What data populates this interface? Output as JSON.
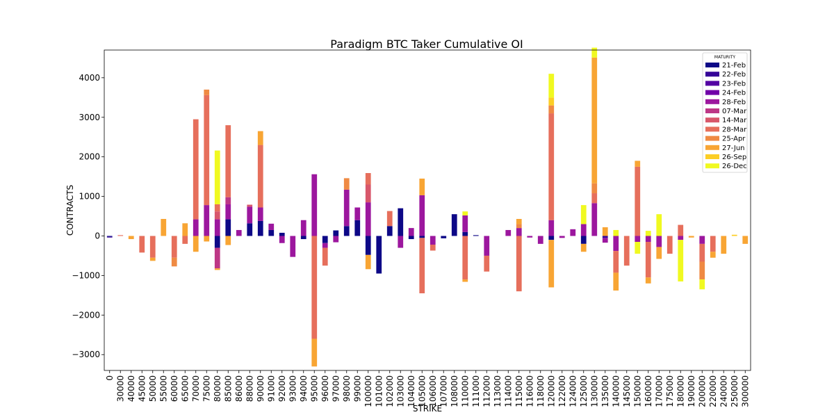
{
  "chart_data": {
    "type": "bar",
    "stacked": true,
    "title": "Paradigm BTC Taker Cumulative OI",
    "xlabel": "STRIKE",
    "ylabel": "CONTRACTS",
    "ylim": [
      -3400,
      4700
    ],
    "yticks": [
      -3000,
      -2000,
      -1000,
      0,
      1000,
      2000,
      3000,
      4000
    ],
    "legend_title": "MATURITY",
    "legend_position": "top-right",
    "categories": [
      "0",
      "30000",
      "40000",
      "45000",
      "50000",
      "55000",
      "60000",
      "65000",
      "70000",
      "75000",
      "80000",
      "85000",
      "86000",
      "88000",
      "90000",
      "91000",
      "92000",
      "93000",
      "94000",
      "95000",
      "96000",
      "97000",
      "98000",
      "99000",
      "100000",
      "101000",
      "102000",
      "103000",
      "104000",
      "105000",
      "106000",
      "107000",
      "108000",
      "110000",
      "111000",
      "112000",
      "113000",
      "114000",
      "115000",
      "116000",
      "118000",
      "120000",
      "122000",
      "124000",
      "125000",
      "130000",
      "135000",
      "140000",
      "145000",
      "150000",
      "160000",
      "170000",
      "175000",
      "180000",
      "190000",
      "200000",
      "220000",
      "240000",
      "250000",
      "300000"
    ],
    "series": [
      {
        "name": "21-Feb",
        "color": "#0d0887",
        "values": [
          -20,
          0,
          0,
          0,
          0,
          0,
          0,
          0,
          0,
          0,
          -300,
          420,
          0,
          320,
          380,
          150,
          80,
          0,
          -80,
          0,
          -180,
          140,
          250,
          400,
          -480,
          -950,
          250,
          700,
          -80,
          -50,
          0,
          -60,
          550,
          100,
          20,
          0,
          0,
          0,
          0,
          0,
          0,
          -100,
          0,
          0,
          -200,
          0,
          0,
          0,
          0,
          0,
          0,
          0,
          0,
          0,
          0,
          0,
          0,
          0,
          0,
          0
        ]
      },
      {
        "name": "22-Feb",
        "color": "#350498",
        "values": [
          -20,
          0,
          0,
          0,
          0,
          0,
          0,
          0,
          0,
          0,
          0,
          0,
          0,
          0,
          0,
          0,
          0,
          0,
          0,
          0,
          0,
          0,
          0,
          0,
          0,
          0,
          0,
          0,
          0,
          0,
          0,
          0,
          0,
          0,
          0,
          0,
          0,
          0,
          0,
          0,
          0,
          0,
          0,
          0,
          0,
          0,
          -50,
          0,
          0,
          0,
          0,
          0,
          0,
          0,
          0,
          0,
          0,
          0,
          0,
          0
        ]
      },
      {
        "name": "23-Feb",
        "color": "#5402a3",
        "values": [
          0,
          0,
          0,
          0,
          0,
          0,
          0,
          0,
          0,
          0,
          0,
          0,
          0,
          0,
          0,
          0,
          0,
          0,
          0,
          0,
          0,
          0,
          0,
          0,
          0,
          0,
          0,
          0,
          0,
          0,
          0,
          0,
          0,
          0,
          0,
          0,
          0,
          0,
          0,
          0,
          0,
          0,
          0,
          0,
          0,
          0,
          0,
          0,
          0,
          0,
          0,
          0,
          0,
          0,
          0,
          0,
          0,
          0,
          0,
          0
        ]
      },
      {
        "name": "24-Feb",
        "color": "#7000a8",
        "values": [
          0,
          0,
          0,
          0,
          0,
          0,
          0,
          0,
          0,
          0,
          0,
          0,
          0,
          0,
          0,
          0,
          0,
          0,
          0,
          0,
          0,
          0,
          0,
          0,
          0,
          0,
          0,
          0,
          0,
          0,
          0,
          0,
          0,
          0,
          0,
          0,
          0,
          0,
          0,
          0,
          0,
          0,
          0,
          0,
          0,
          0,
          0,
          0,
          0,
          0,
          0,
          0,
          0,
          0,
          0,
          0,
          0,
          0,
          0,
          0
        ]
      },
      {
        "name": "28-Feb",
        "color": "#9c179e",
        "values": [
          0,
          0,
          0,
          0,
          0,
          0,
          0,
          0,
          420,
          780,
          420,
          380,
          150,
          420,
          340,
          160,
          -180,
          -530,
          400,
          1560,
          -120,
          -160,
          920,
          320,
          850,
          0,
          0,
          -300,
          200,
          1030,
          -220,
          0,
          0,
          420,
          0,
          -500,
          0,
          150,
          200,
          -40,
          -200,
          400,
          -50,
          170,
          300,
          830,
          -120,
          -380,
          0,
          -150,
          -150,
          -280,
          0,
          -100,
          0,
          -200,
          0,
          0,
          0,
          0
        ]
      },
      {
        "name": "07-Mar",
        "color": "#bd3786",
        "values": [
          0,
          0,
          0,
          0,
          0,
          0,
          0,
          0,
          0,
          0,
          -520,
          180,
          0,
          0,
          0,
          0,
          0,
          0,
          0,
          0,
          0,
          0,
          0,
          0,
          0,
          0,
          0,
          0,
          0,
          0,
          0,
          0,
          0,
          0,
          0,
          0,
          0,
          0,
          0,
          0,
          0,
          0,
          0,
          0,
          0,
          0,
          0,
          0,
          0,
          0,
          0,
          0,
          0,
          0,
          0,
          0,
          0,
          0,
          0,
          0
        ]
      },
      {
        "name": "14-Mar",
        "color": "#d8576b",
        "values": [
          0,
          0,
          0,
          0,
          0,
          0,
          0,
          0,
          0,
          0,
          200,
          0,
          0,
          50,
          0,
          0,
          0,
          0,
          0,
          0,
          0,
          0,
          0,
          0,
          450,
          0,
          0,
          0,
          0,
          0,
          0,
          0,
          0,
          0,
          0,
          0,
          0,
          0,
          0,
          0,
          0,
          0,
          0,
          0,
          0,
          0,
          0,
          0,
          0,
          0,
          0,
          0,
          0,
          0,
          0,
          0,
          0,
          0,
          0,
          0
        ]
      },
      {
        "name": "28-Mar",
        "color": "#e66f5c",
        "values": [
          0,
          20,
          0,
          -420,
          -550,
          0,
          -550,
          -200,
          2530,
          2780,
          180,
          1820,
          0,
          0,
          1580,
          0,
          0,
          0,
          0,
          -2600,
          -450,
          0,
          0,
          0,
          290,
          0,
          380,
          0,
          0,
          -1400,
          -150,
          0,
          0,
          -1100,
          0,
          -400,
          0,
          0,
          -1400,
          0,
          0,
          2700,
          0,
          0,
          0,
          250,
          0,
          -550,
          -750,
          1750,
          -900,
          0,
          -450,
          280,
          0,
          -450,
          -400,
          0,
          0,
          0
        ]
      },
      {
        "name": "25-Apr",
        "color": "#ef8a43",
        "values": [
          0,
          0,
          0,
          0,
          0,
          0,
          -220,
          0,
          0,
          140,
          0,
          0,
          0,
          0,
          0,
          0,
          0,
          0,
          0,
          0,
          0,
          0,
          290,
          0,
          0,
          0,
          0,
          0,
          0,
          0,
          0,
          0,
          0,
          0,
          0,
          0,
          0,
          0,
          100,
          0,
          0,
          200,
          0,
          0,
          0,
          250,
          0,
          0,
          0,
          0,
          0,
          0,
          0,
          0,
          0,
          -450,
          0,
          0,
          0,
          0
        ]
      },
      {
        "name": "27-Jun",
        "color": "#f8a534",
        "values": [
          0,
          0,
          -80,
          0,
          -80,
          430,
          0,
          320,
          -400,
          -140,
          -40,
          -230,
          0,
          0,
          350,
          0,
          0,
          0,
          0,
          -700,
          0,
          0,
          0,
          0,
          -360,
          0,
          0,
          0,
          0,
          420,
          0,
          0,
          0,
          -60,
          0,
          0,
          0,
          0,
          130,
          0,
          0,
          -1200,
          0,
          0,
          -200,
          3180,
          220,
          -450,
          0,
          150,
          -150,
          -300,
          0,
          0,
          -40,
          0,
          -150,
          -450,
          0,
          -200
        ]
      },
      {
        "name": "26-Sep",
        "color": "#fcce25",
        "values": [
          0,
          0,
          0,
          0,
          0,
          0,
          0,
          0,
          0,
          0,
          0,
          0,
          0,
          0,
          0,
          0,
          0,
          0,
          0,
          0,
          0,
          0,
          0,
          0,
          0,
          0,
          0,
          0,
          0,
          0,
          0,
          0,
          0,
          0,
          0,
          0,
          0,
          0,
          0,
          0,
          0,
          200,
          0,
          0,
          0,
          0,
          0,
          0,
          0,
          0,
          0,
          0,
          0,
          0,
          0,
          0,
          0,
          0,
          30,
          0
        ]
      },
      {
        "name": "26-Dec",
        "color": "#f0f921",
        "values": [
          0,
          0,
          0,
          0,
          0,
          0,
          0,
          0,
          0,
          0,
          1360,
          0,
          0,
          0,
          0,
          0,
          0,
          0,
          0,
          0,
          0,
          0,
          0,
          0,
          0,
          0,
          0,
          0,
          0,
          0,
          0,
          0,
          0,
          100,
          0,
          0,
          0,
          0,
          0,
          0,
          0,
          600,
          0,
          0,
          480,
          250,
          0,
          150,
          0,
          -300,
          130,
          550,
          0,
          -1050,
          0,
          -250,
          0,
          0,
          0,
          0
        ]
      }
    ]
  }
}
